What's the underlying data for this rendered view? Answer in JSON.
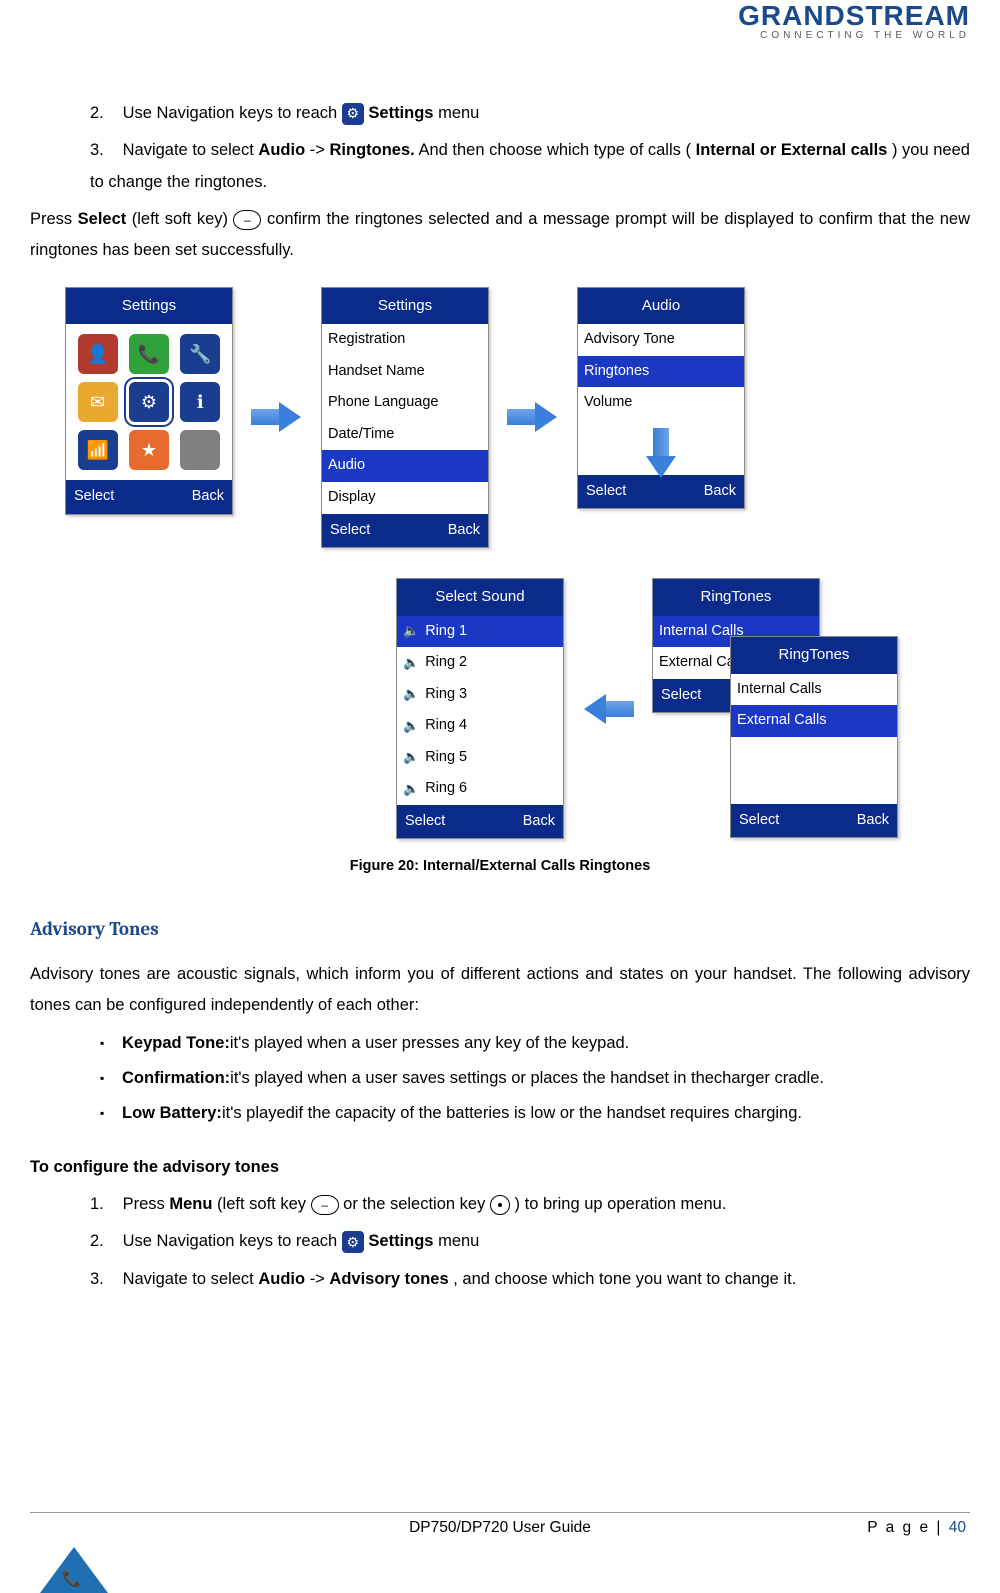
{
  "logo": {
    "main": "GRANDSTREAM",
    "sub": "CONNECTING THE WORLD"
  },
  "steps_top": {
    "s2_a": "Use Navigation keys to reach ",
    "s2_b": " Settings",
    "s2_c": " menu",
    "s3_a": "Navigate to select ",
    "s3_b": "Audio",
    "s3_c": " -> ",
    "s3_d": "Ringtones.",
    "s3_e": " And then choose which type of calls (",
    "s3_f": "Internal or External calls",
    "s3_g": ") you need to change the ringtones."
  },
  "press_line": {
    "a": "Press ",
    "b": "Select",
    "c": "(left soft key)",
    "d": "confirm the ringtones selected and a message prompt will be displayed to confirm that the new ringtones has been set successfully."
  },
  "screen1": {
    "title": "Settings",
    "foot_l": "Select",
    "foot_r": "Back",
    "icons": [
      {
        "bg": "#b23a2e",
        "g": "👤"
      },
      {
        "bg": "#2fa33a",
        "g": "📞"
      },
      {
        "bg": "#1a3d8f",
        "g": "🔧"
      },
      {
        "bg": "#e8a92e",
        "g": "✉"
      },
      {
        "bg": "#1a3d8f",
        "g": "⚙"
      },
      {
        "bg": "#1a3d8f",
        "g": "ℹ"
      },
      {
        "bg": "#1a3d8f",
        "g": "📶"
      },
      {
        "bg": "#e86b2e",
        "g": "★"
      },
      {
        "bg": "#808080",
        "g": ""
      }
    ]
  },
  "screen2": {
    "title": "Settings",
    "items": [
      "Registration",
      "Handset Name",
      "Phone Language",
      "Date/Time",
      "Audio",
      "Display"
    ],
    "selected": 4,
    "foot_l": "Select",
    "foot_r": "Back"
  },
  "screen3": {
    "title": "Audio",
    "items": [
      "Advisory Tone",
      "Ringtones",
      "Volume"
    ],
    "selected": 1,
    "foot_l": "Select",
    "foot_r": "Back"
  },
  "screen4": {
    "title": "Select Sound",
    "items": [
      "Ring 1",
      "Ring 2",
      "Ring 3",
      "Ring 4",
      "Ring 5",
      "Ring 6"
    ],
    "selected": 0,
    "foot_l": "Select",
    "foot_r": "Back"
  },
  "screen5": {
    "title": "RingTones",
    "items": [
      "Internal Calls",
      "External Calls"
    ],
    "selected": 0,
    "foot_l": "Select",
    "foot_r": ""
  },
  "screen6": {
    "title": "RingTones",
    "items": [
      "Internal Calls",
      "External Calls"
    ],
    "selected": 1,
    "foot_l": "Select",
    "foot_r": "Back"
  },
  "fig_caption": "Figure 20: Internal/External Calls Ringtones",
  "section_title": "Advisory Tones",
  "advisory_intro": "Advisory tones are acoustic signals, which inform you of different actions and states on your handset. The following advisory tones can be configured independently of each other:",
  "bullets": {
    "b1_a": "Keypad Tone:",
    "b1_b": "it's played when a user presses any key of the keypad.",
    "b2_a": "Confirmation:",
    "b2_b": "it's played when a user saves settings or places the handset in thecharger cradle.",
    "b3_a": "Low Battery:",
    "b3_b": "it's playedif the capacity of the batteries is low or the handset requires charging."
  },
  "configure_heading": "To configure the advisory tones",
  "steps_bottom": {
    "s1_a": "Press ",
    "s1_b": "Menu",
    "s1_c": " (left soft key ",
    "s1_d": " or the selection key",
    "s1_e": " ) to bring up operation menu.",
    "s2_a": "Use Navigation keys to reach ",
    "s2_b": " Settings",
    "s2_c": " menu",
    "s3_a": "Navigate to select ",
    "s3_b": "Audio",
    "s3_c": " ->",
    "s3_d": "Advisory tones",
    "s3_e": ", and choose which tone you want to change it."
  },
  "footer": {
    "center": "DP750/DP720 User Guide",
    "page_label": "P a g e | ",
    "page_num": "40"
  }
}
